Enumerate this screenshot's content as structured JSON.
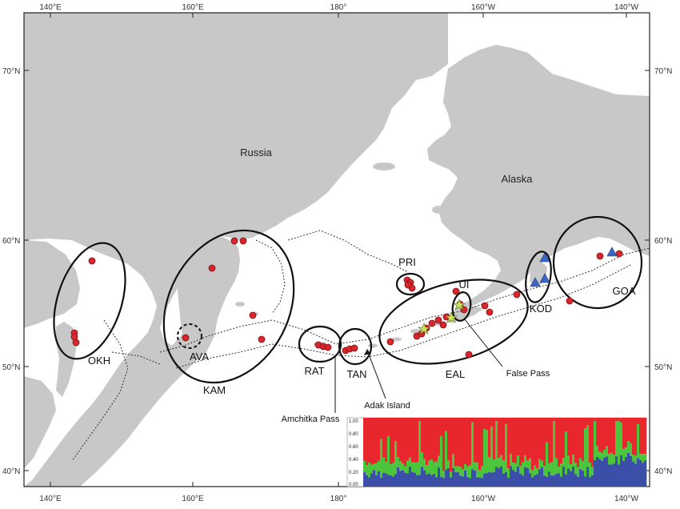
{
  "axes": {
    "top_lon": [
      "140°E",
      "160°E",
      "180°",
      "160°W",
      "140°W"
    ],
    "bottom_lon": [
      "140°E",
      "160°E",
      "180°",
      "160°W",
      "140°W"
    ],
    "left_lat": [
      "70°N",
      "60°N",
      "50°N",
      "40°N"
    ],
    "right_lat": [
      "70°N",
      "60°N",
      "50°N",
      "40°N"
    ]
  },
  "places": {
    "russia": "Russia",
    "alaska": "Alaska"
  },
  "regions": {
    "okh": "OKH",
    "ava": "AVA",
    "kam": "KAM",
    "rat": "RAT",
    "tan": "TAN",
    "pri": "PRI",
    "ui": "UI",
    "eal": "EAL",
    "kod": "KOD",
    "goa": "GOA"
  },
  "annotations": {
    "amchitka": "Amchitka Pass",
    "adak": "Adak Island",
    "false_pass": "False Pass"
  },
  "inset": {
    "y_ticks": [
      "1.00",
      "0.80",
      "0.60",
      "0.40",
      "0.20",
      "0.00"
    ],
    "colors": {
      "red": "#e8262d",
      "green": "#4cc43c",
      "blue": "#3c4fa8"
    }
  },
  "colors": {
    "land": "#c8c8c8",
    "sea": "#ffffff",
    "sample_dot": "#d9262c",
    "triangle": "#3b66c4",
    "star": "#c8e05a"
  }
}
